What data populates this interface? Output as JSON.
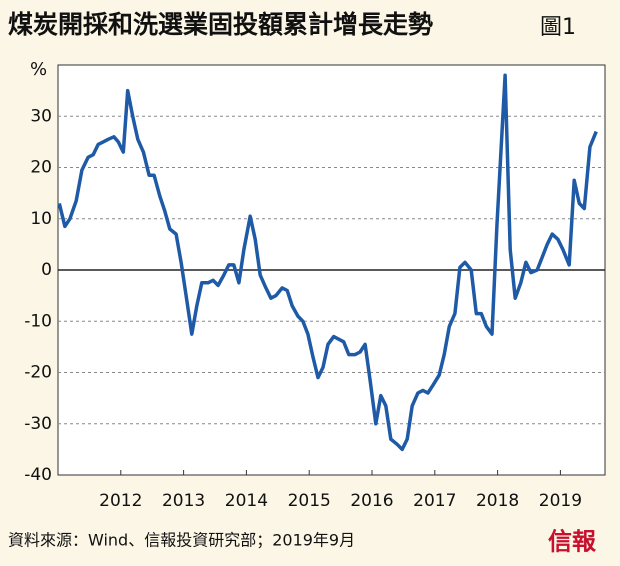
{
  "chart_data": {
    "type": "line",
    "title": "煤炭開採和洗選業固投額累計增長走勢",
    "figure_label": "圖1",
    "y_unit": "%",
    "source": "資料來源：Wind、信報投資研究部；2019年9月",
    "logo": "信報",
    "x": [
      2011.02,
      2011.11,
      2011.19,
      2011.29,
      2011.38,
      2011.48,
      2011.56,
      2011.64,
      2011.72,
      2011.8,
      2011.89,
      2011.96,
      2012.04,
      2012.11,
      2012.19,
      2012.27,
      2012.36,
      2012.45,
      2012.53,
      2012.62,
      2012.7,
      2012.78,
      2012.88,
      2012.96,
      2013.04,
      2013.13,
      2013.21,
      2013.29,
      2013.39,
      2013.47,
      2013.55,
      2013.64,
      2013.72,
      2013.8,
      2013.88,
      2013.96,
      2014.06,
      2014.14,
      2014.22,
      2014.31,
      2014.39,
      2014.47,
      2014.57,
      2014.65,
      2014.73,
      2014.82,
      2014.9,
      2014.98,
      2015.06,
      2015.14,
      2015.22,
      2015.3,
      2015.39,
      2015.47,
      2015.55,
      2015.63,
      2015.73,
      2015.81,
      2015.89,
      2015.97,
      2016.06,
      2016.14,
      2016.22,
      2016.3,
      2016.4,
      2016.48,
      2016.56,
      2016.64,
      2016.73,
      2016.81,
      2016.89,
      2016.97,
      2017.07,
      2017.15,
      2017.23,
      2017.32,
      2017.4,
      2017.48,
      2017.58,
      2017.66,
      2017.74,
      2017.82,
      2017.91,
      2017.99,
      2018.12,
      2018.2,
      2018.28,
      2018.37,
      2018.45,
      2018.53,
      2018.63,
      2018.71,
      2018.79,
      2018.87,
      2018.96,
      2019.04,
      2019.14,
      2019.22,
      2019.3,
      2019.38,
      2019.47,
      2019.57
    ],
    "series": [
      {
        "name": "累計增長",
        "color": "#1f5aa6",
        "values": [
          13,
          8.5,
          10,
          13.5,
          19.5,
          22,
          22.5,
          24.5,
          25,
          25.5,
          26,
          25,
          23,
          35,
          30,
          25.5,
          23,
          18.5,
          18.5,
          14.5,
          11.5,
          8,
          7,
          1.5,
          -5,
          -12.5,
          -7,
          -2.5,
          -2.5,
          -2,
          -3,
          -1,
          1,
          1,
          -2.5,
          4,
          10.5,
          6,
          -1,
          -3.5,
          -5.5,
          -5,
          -3.5,
          -4,
          -7,
          -9,
          -10,
          -12.5,
          -17,
          -21,
          -19,
          -14.5,
          -13,
          -13.5,
          -14,
          -16.5,
          -16.5,
          -16,
          -14.5,
          -21.5,
          -30,
          -24.5,
          -26.5,
          -33,
          -34,
          -35,
          -33,
          -26.5,
          -24,
          -23.5,
          -24,
          -22.5,
          -20.5,
          -16.5,
          -11,
          -8.5,
          0.5,
          1.5,
          0,
          -8.5,
          -8.5,
          -11,
          -12.5,
          9,
          38,
          4,
          -5.5,
          -2.5,
          1.5,
          -0.5,
          0,
          2.5,
          5,
          7,
          6,
          4,
          1,
          17.5,
          13,
          12,
          24,
          27
        ]
      }
    ],
    "xlim": [
      2011,
      2019.71
    ],
    "xticks": [
      2012,
      2013,
      2014,
      2015,
      2016,
      2017,
      2018,
      2019
    ],
    "ylim": [
      -40,
      40
    ],
    "yticks": [
      30,
      20,
      10,
      0,
      -10,
      -20,
      -30,
      -40
    ],
    "grid": true
  }
}
